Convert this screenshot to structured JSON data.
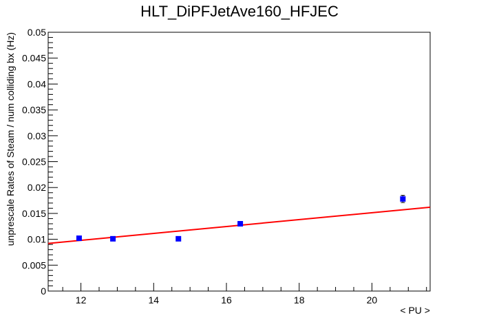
{
  "chart_data": {
    "type": "scatter",
    "title": "HLT_DiPFJetAve160_HFJEC",
    "xlabel": "< PU >",
    "ylabel": "unprescale Rates of Steam / num colliding bx (Hz)",
    "xlim": [
      11.1,
      21.6
    ],
    "ylim": [
      0,
      0.05
    ],
    "x_ticks": [
      "12",
      "14",
      "16",
      "18",
      "20"
    ],
    "y_ticks": [
      "0",
      "0.005",
      "0.01",
      "0.015",
      "0.02",
      "0.025",
      "0.03",
      "0.035",
      "0.04",
      "0.045",
      "0.05"
    ],
    "grid": false,
    "series": [
      {
        "points": [
          {
            "x": 11.95,
            "y": 0.0102,
            "err": 0.0003
          },
          {
            "x": 12.88,
            "y": 0.0101,
            "err": 0.0003
          },
          {
            "x": 14.68,
            "y": 0.0101,
            "err": 0.0003
          },
          {
            "x": 16.38,
            "y": 0.013,
            "err": 0.0003
          },
          {
            "x": 20.85,
            "y": 0.0178,
            "err": 0.0007
          }
        ],
        "color": "#0000ff"
      }
    ],
    "fit": {
      "x": [
        11.1,
        21.6
      ],
      "y": [
        0.0092,
        0.0162
      ],
      "color": "#ff0000"
    }
  }
}
